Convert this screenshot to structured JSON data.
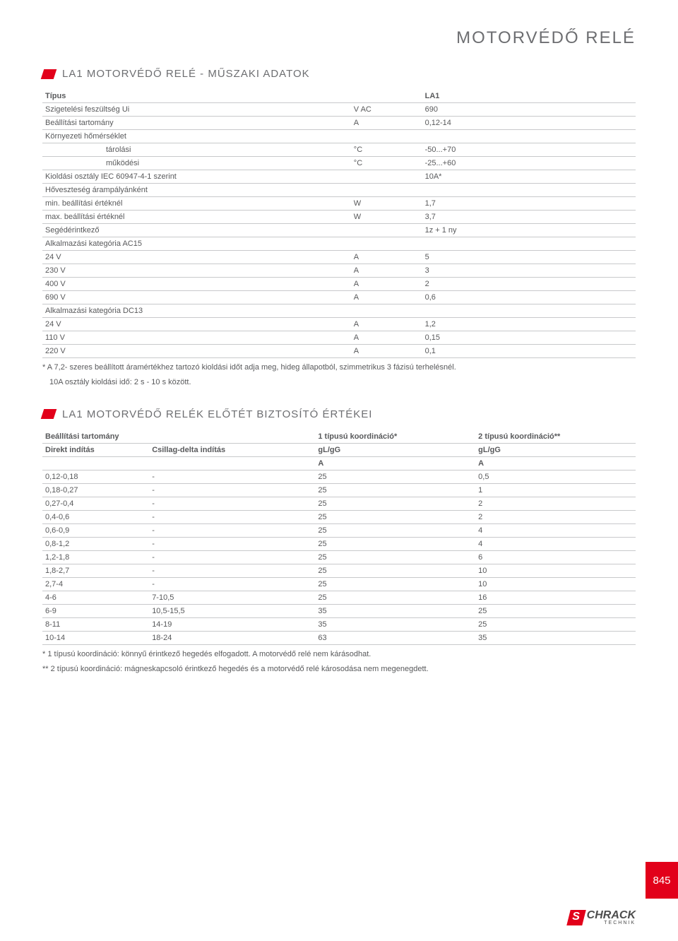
{
  "page_title": "MOTORVÉDŐ RELÉ",
  "section1": {
    "title": "LA1 MOTORVÉDŐ RELÉ - MŰSZAKI ADATOK",
    "head": {
      "type": "Típus",
      "model": "LA1"
    },
    "rows": [
      {
        "label": "Szigetelési feszültség Ui",
        "unit": "V AC",
        "val": "690"
      },
      {
        "label": "Beállítási tartomány",
        "unit": "A",
        "val": "0,12-14"
      },
      {
        "label": "Környezeti hőmérséklet",
        "unit": "",
        "val": ""
      },
      {
        "label": "tárolási",
        "indent": true,
        "unit": "°C",
        "val": "-50...+70"
      },
      {
        "label": "működési",
        "indent": true,
        "unit": "°C",
        "val": "-25...+60"
      },
      {
        "label": "Kioldási osztály IEC 60947-4-1 szerint",
        "unit": "",
        "val": "10A*"
      },
      {
        "label": "Hőveszteség árampályánként",
        "unit": "",
        "val": ""
      },
      {
        "label": "min. beállítási értéknél",
        "unit": "W",
        "val": "1,7"
      },
      {
        "label": "max. beállítási értéknél",
        "unit": "W",
        "val": "3,7"
      },
      {
        "label": "Segédérintkező",
        "unit": "",
        "val": "1z + 1 ny"
      },
      {
        "label": "Alkalmazási kategória AC15",
        "unit": "",
        "val": ""
      },
      {
        "label": "24 V",
        "unit": "A",
        "val": "5"
      },
      {
        "label": "230 V",
        "unit": "A",
        "val": "3"
      },
      {
        "label": "400 V",
        "unit": "A",
        "val": "2"
      },
      {
        "label": "690 V",
        "unit": "A",
        "val": "0,6"
      },
      {
        "label": "Alkalmazási kategória DC13",
        "unit": "",
        "val": ""
      },
      {
        "label": "24 V",
        "unit": "A",
        "val": "1,2"
      },
      {
        "label": "110 V",
        "unit": "A",
        "val": "0,15"
      },
      {
        "label": "220 V",
        "unit": "A",
        "val": "0,1"
      }
    ],
    "footnote1": "* A 7,2- szeres beállított áramértékhez tartozó kioldási időt adja meg, hideg állapotból, szimmetrikus 3 fázisú terhelésnél.",
    "footnote2": "10A osztály kioldási idő: 2 s - 10 s között."
  },
  "section2": {
    "title": "LA1 MOTORVÉDŐ RELÉK ELŐTÉT BIZTOSÍTÓ ÉRTÉKEI",
    "head_row1": {
      "c1": "Beállítási tartomány",
      "c3": "1 típusú koordináció*",
      "c4": "2 típusú koordináció**"
    },
    "head_row2": {
      "c1": "Direkt indítás",
      "c2": "Csillag-delta indítás",
      "c3": "gL/gG",
      "c4": "gL/gG"
    },
    "head_row3": {
      "c3": "A",
      "c4": "A"
    },
    "rows": [
      {
        "c1": "0,12-0,18",
        "c2": "-",
        "c3": "25",
        "c4": "0,5"
      },
      {
        "c1": "0,18-0,27",
        "c2": "-",
        "c3": "25",
        "c4": "1"
      },
      {
        "c1": "0,27-0,4",
        "c2": "-",
        "c3": "25",
        "c4": "2"
      },
      {
        "c1": "0,4-0,6",
        "c2": "-",
        "c3": "25",
        "c4": "2"
      },
      {
        "c1": "0,6-0,9",
        "c2": "-",
        "c3": "25",
        "c4": "4"
      },
      {
        "c1": "0,8-1,2",
        "c2": "-",
        "c3": "25",
        "c4": "4"
      },
      {
        "c1": "1,2-1,8",
        "c2": "-",
        "c3": "25",
        "c4": "6"
      },
      {
        "c1": "1,8-2,7",
        "c2": "-",
        "c3": "25",
        "c4": "10"
      },
      {
        "c1": "2,7-4",
        "c2": "-",
        "c3": "25",
        "c4": "10"
      },
      {
        "c1": "4-6",
        "c2": "7-10,5",
        "c3": "25",
        "c4": "16"
      },
      {
        "c1": "6-9",
        "c2": "10,5-15,5",
        "c3": "35",
        "c4": "25"
      },
      {
        "c1": "8-11",
        "c2": "14-19",
        "c3": "35",
        "c4": "25"
      },
      {
        "c1": "10-14",
        "c2": "18-24",
        "c3": "63",
        "c4": "35"
      }
    ],
    "footnote1": "* 1 típusú koordináció: könnyű érintkező hegedés elfogadott. A motorvédő relé nem kárásodhat.",
    "footnote2": "** 2 típusú koordináció: mágneskapcsoló érintkező hegedés és a motorvédő relé károsodása nem megenegdett."
  },
  "page_number": "845",
  "logo_text": "CHRACK",
  "logo_sub": "TECHNIK",
  "colors": {
    "accent": "#e2001a",
    "text": "#58595b",
    "title": "#6d6e71",
    "rule": "#c8c9cb",
    "background": "#ffffff"
  }
}
